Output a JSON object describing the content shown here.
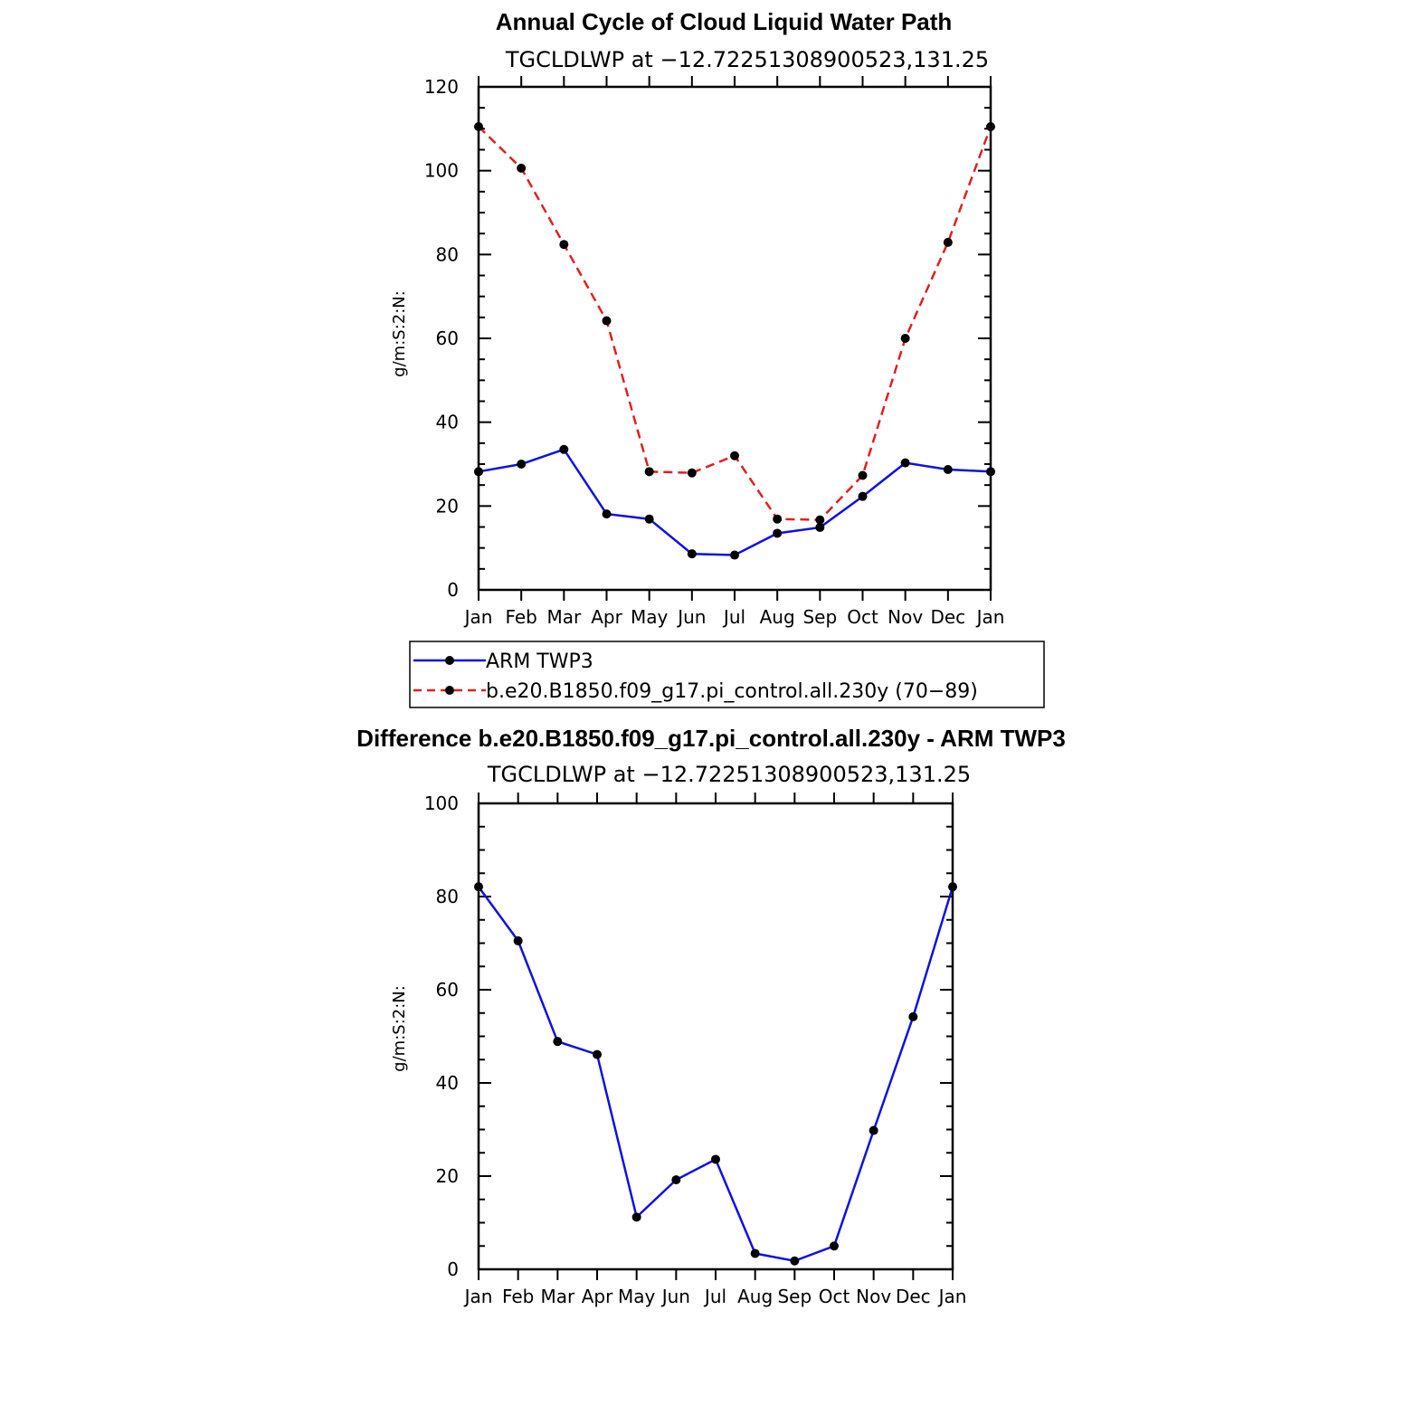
{
  "chart_data": [
    {
      "type": "line",
      "title": "Annual Cycle of Cloud Liquid Water Path",
      "subtitle": "TGCLDLWP at −12.72251308900523,131.25",
      "xlabel": "",
      "ylabel": "g/m:S:2:N:",
      "categories": [
        "Jan",
        "Feb",
        "Mar",
        "Apr",
        "May",
        "Jun",
        "Jul",
        "Aug",
        "Sep",
        "Oct",
        "Nov",
        "Dec",
        "Jan"
      ],
      "ylim": [
        0,
        120
      ],
      "yticks": [
        0,
        20,
        40,
        60,
        80,
        100,
        120
      ],
      "series": [
        {
          "name": "ARM TWP3",
          "color": "#1010e0",
          "dash": "solid",
          "values": [
            28.2,
            30.0,
            33.5,
            18.1,
            16.9,
            8.6,
            8.3,
            13.5,
            14.9,
            22.3,
            30.3,
            28.7,
            28.2
          ]
        },
        {
          "name": "b.e20.B1850.f09_g17.pi_control.all.230y (70−89)",
          "color": "#e02020",
          "dash": "dashed",
          "values": [
            110.5,
            100.6,
            82.4,
            64.2,
            28.2,
            27.9,
            32.0,
            16.9,
            16.7,
            27.3,
            60.0,
            82.9,
            110.5
          ]
        }
      ]
    },
    {
      "type": "line",
      "title": "Difference b.e20.B1850.f09_g17.pi_control.all.230y - ARM TWP3",
      "subtitle": "TGCLDLWP at −12.72251308900523,131.25",
      "xlabel": "",
      "ylabel": "g/m:S:2:N:",
      "categories": [
        "Jan",
        "Feb",
        "Mar",
        "Apr",
        "May",
        "Jun",
        "Jul",
        "Aug",
        "Sep",
        "Oct",
        "Nov",
        "Dec",
        "Jan"
      ],
      "ylim": [
        0,
        100
      ],
      "yticks": [
        0,
        20,
        40,
        60,
        80,
        100
      ],
      "series": [
        {
          "name": "Difference",
          "color": "#1010e0",
          "dash": "solid",
          "values": [
            82.1,
            70.5,
            48.9,
            46.1,
            11.2,
            19.2,
            23.6,
            3.4,
            1.8,
            5.0,
            29.8,
            54.2,
            82.1
          ]
        }
      ]
    }
  ]
}
